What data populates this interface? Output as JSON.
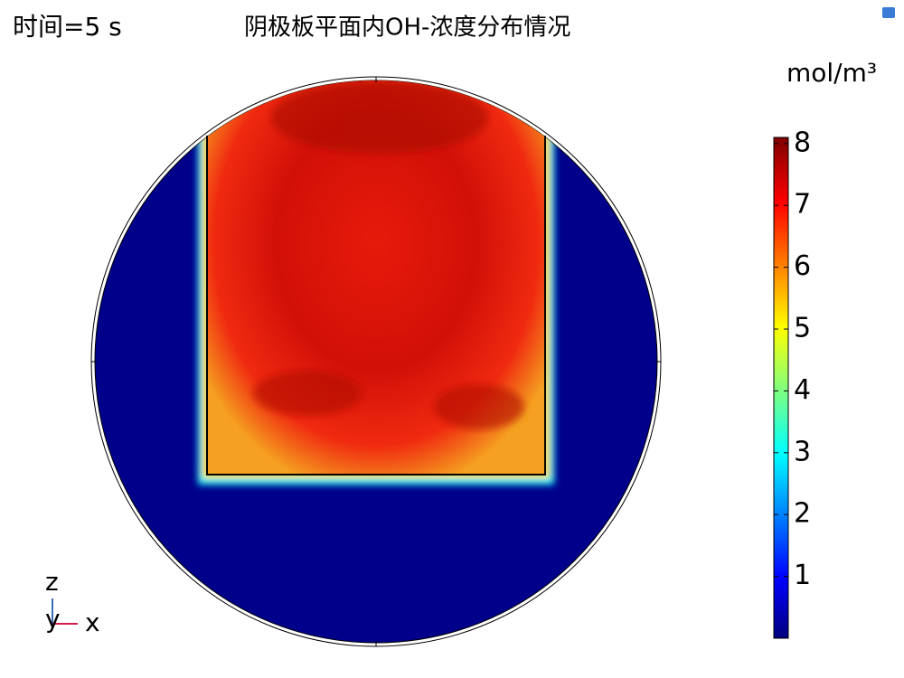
{
  "header": {
    "time": "时间=5 s",
    "title": "阴极板平面内OH-浓度分布情况"
  },
  "colorbar": {
    "unit": "mol/m³",
    "range": [
      0,
      8.1
    ],
    "ticks": [
      1,
      2,
      3,
      4,
      5,
      6,
      7,
      8
    ]
  },
  "axes": {
    "z": "z",
    "y": "y",
    "x": "x"
  }
}
